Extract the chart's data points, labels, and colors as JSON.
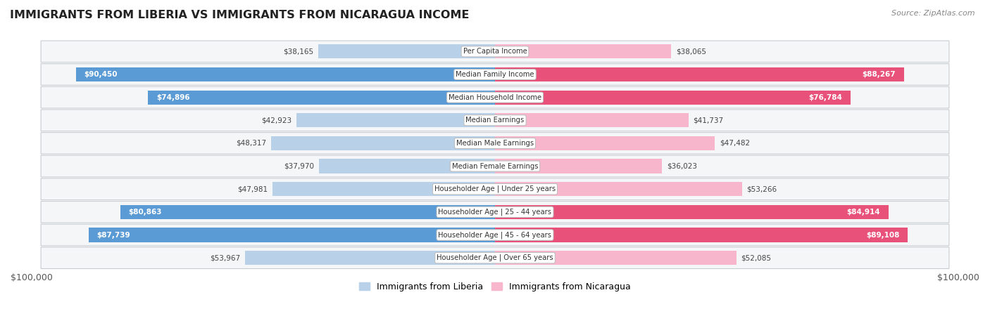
{
  "title": "IMMIGRANTS FROM LIBERIA VS IMMIGRANTS FROM NICARAGUA INCOME",
  "source": "Source: ZipAtlas.com",
  "categories": [
    "Per Capita Income",
    "Median Family Income",
    "Median Household Income",
    "Median Earnings",
    "Median Male Earnings",
    "Median Female Earnings",
    "Householder Age | Under 25 years",
    "Householder Age | 25 - 44 years",
    "Householder Age | 45 - 64 years",
    "Householder Age | Over 65 years"
  ],
  "liberia_values": [
    38165,
    90450,
    74896,
    42923,
    48317,
    37970,
    47981,
    80863,
    87739,
    53967
  ],
  "nicaragua_values": [
    38065,
    88267,
    76784,
    41737,
    47482,
    36023,
    53266,
    84914,
    89108,
    52085
  ],
  "liberia_labels": [
    "$38,165",
    "$90,450",
    "$74,896",
    "$42,923",
    "$48,317",
    "$37,970",
    "$47,981",
    "$80,863",
    "$87,739",
    "$53,967"
  ],
  "nicaragua_labels": [
    "$38,065",
    "$88,267",
    "$76,784",
    "$41,737",
    "$47,482",
    "$36,023",
    "$53,266",
    "$84,914",
    "$89,108",
    "$52,085"
  ],
  "liberia_light": "#b8d0e8",
  "liberia_dark": "#5b9bd5",
  "nicaragua_light": "#f7b6cc",
  "nicaragua_dark": "#e8527a",
  "liberia_threshold": 60000,
  "nicaragua_threshold": 60000,
  "max_value": 100000,
  "bar_height": 0.62,
  "row_bg_light": "#f5f6f7",
  "row_bg_border": "#d0d4d8",
  "legend_liberia": "Immigrants from Liberia",
  "legend_nicaragua": "Immigrants from Nicaragua"
}
